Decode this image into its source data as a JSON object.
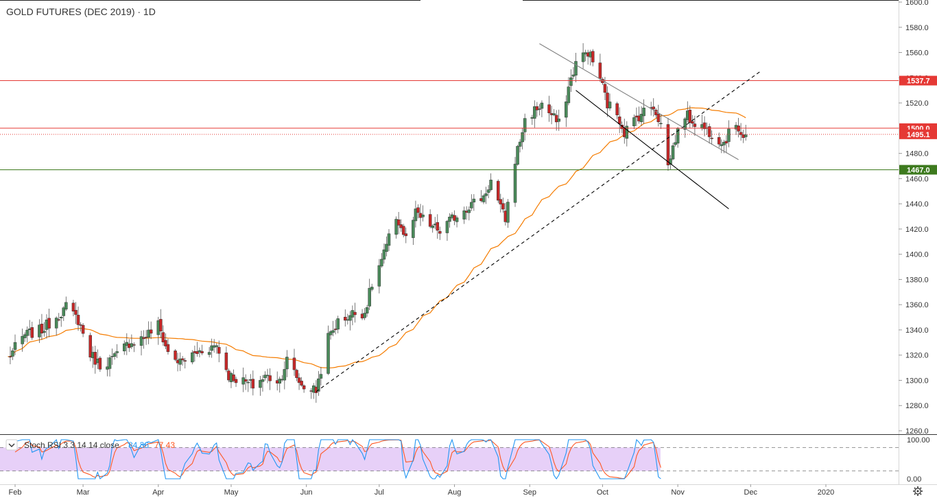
{
  "chart_data": {
    "type": "candlestick",
    "title": "GOLD FUTURES (DEC 2019) · 1D",
    "y_ticks": [
      "1600.0",
      "1580.0",
      "1560.0",
      "1540.0",
      "1520.0",
      "1500.0",
      "1480.0",
      "1460.0",
      "1440.0",
      "1420.0",
      "1400.0",
      "1380.0",
      "1360.0",
      "1340.0",
      "1320.0",
      "1300.0",
      "1280.0",
      "1260.0"
    ],
    "y_tick_values": [
      1600,
      1580,
      1560,
      1540,
      1520,
      1500,
      1480,
      1460,
      1440,
      1420,
      1400,
      1380,
      1360,
      1340,
      1320,
      1300,
      1280,
      1260
    ],
    "ylim": [
      1258,
      1602
    ],
    "x_labels": [
      "Feb",
      "Mar",
      "Apr",
      "May",
      "Jun",
      "Jul",
      "Aug",
      "Sep",
      "Oct",
      "Nov",
      "Dec",
      "2020"
    ],
    "price_markers": [
      {
        "label": "1537.7",
        "value": 1537.7,
        "color": "#e53935"
      },
      {
        "label": "1500.0",
        "value": 1500.0,
        "color": "#e53935"
      },
      {
        "label": "1495.1",
        "value": 1495.1,
        "color": "#e53935"
      },
      {
        "label": "1467.0",
        "value": 1467.0,
        "color": "#3d7a1e"
      }
    ],
    "anchors": [
      {
        "date": "2019-01-29",
        "close": 1318
      },
      {
        "date": "2019-02-05",
        "close": 1336
      },
      {
        "date": "2019-02-12",
        "close": 1340
      },
      {
        "date": "2019-02-20",
        "close": 1354
      },
      {
        "date": "2019-02-22",
        "close": 1358
      },
      {
        "date": "2019-02-27",
        "close": 1348
      },
      {
        "date": "2019-03-04",
        "close": 1321
      },
      {
        "date": "2019-03-08",
        "close": 1312
      },
      {
        "date": "2019-03-14",
        "close": 1318
      },
      {
        "date": "2019-03-20",
        "close": 1330
      },
      {
        "date": "2019-03-26",
        "close": 1334
      },
      {
        "date": "2019-04-01",
        "close": 1344
      },
      {
        "date": "2019-04-05",
        "close": 1322
      },
      {
        "date": "2019-04-10",
        "close": 1314
      },
      {
        "date": "2019-04-15",
        "close": 1320
      },
      {
        "date": "2019-04-19",
        "close": 1324
      },
      {
        "date": "2019-04-25",
        "close": 1328
      },
      {
        "date": "2019-04-30",
        "close": 1304
      },
      {
        "date": "2019-05-06",
        "close": 1299
      },
      {
        "date": "2019-05-10",
        "close": 1296
      },
      {
        "date": "2019-05-15",
        "close": 1303
      },
      {
        "date": "2019-05-21",
        "close": 1300
      },
      {
        "date": "2019-05-24",
        "close": 1316
      },
      {
        "date": "2019-05-30",
        "close": 1296
      },
      {
        "date": "2019-06-05",
        "close": 1292
      },
      {
        "date": "2019-06-10",
        "close": 1334
      },
      {
        "date": "2019-06-14",
        "close": 1346
      },
      {
        "date": "2019-06-20",
        "close": 1353
      },
      {
        "date": "2019-06-25",
        "close": 1354
      },
      {
        "date": "2019-06-28",
        "close": 1376
      },
      {
        "date": "2019-07-03",
        "close": 1400
      },
      {
        "date": "2019-07-08",
        "close": 1430
      },
      {
        "date": "2019-07-12",
        "close": 1412
      },
      {
        "date": "2019-07-16",
        "close": 1432
      },
      {
        "date": "2019-07-22",
        "close": 1423
      },
      {
        "date": "2019-07-26",
        "close": 1418
      },
      {
        "date": "2019-07-31",
        "close": 1428
      },
      {
        "date": "2019-08-05",
        "close": 1436
      },
      {
        "date": "2019-08-09",
        "close": 1441
      },
      {
        "date": "2019-08-13",
        "close": 1446
      },
      {
        "date": "2019-08-16",
        "close": 1458
      },
      {
        "date": "2019-08-20",
        "close": 1436
      },
      {
        "date": "2019-08-22",
        "close": 1428
      },
      {
        "date": "2019-08-26",
        "close": 1475
      },
      {
        "date": "2019-08-30",
        "close": 1506
      },
      {
        "date": "2019-09-03",
        "close": 1514
      },
      {
        "date": "2019-09-06",
        "close": 1519
      },
      {
        "date": "2019-09-10",
        "close": 1510
      },
      {
        "date": "2019-09-13",
        "close": 1503
      },
      {
        "date": "2019-09-17",
        "close": 1532
      },
      {
        "date": "2019-09-20",
        "close": 1552
      },
      {
        "date": "2019-09-25",
        "close": 1561
      },
      {
        "date": "2019-09-30",
        "close": 1540
      },
      {
        "date": "2019-10-03",
        "close": 1519
      },
      {
        "date": "2019-10-07",
        "close": 1512
      },
      {
        "date": "2019-10-10",
        "close": 1497
      },
      {
        "date": "2019-10-14",
        "close": 1506
      },
      {
        "date": "2019-10-17",
        "close": 1512
      },
      {
        "date": "2019-10-22",
        "close": 1518
      },
      {
        "date": "2019-10-25",
        "close": 1503
      },
      {
        "date": "2019-10-28",
        "close": 1470
      },
      {
        "date": "2019-10-31",
        "close": 1492
      },
      {
        "date": "2019-11-04",
        "close": 1511
      },
      {
        "date": "2019-11-07",
        "close": 1506
      },
      {
        "date": "2019-11-12",
        "close": 1500
      },
      {
        "date": "2019-11-15",
        "close": 1496
      },
      {
        "date": "2019-11-20",
        "close": 1489
      },
      {
        "date": "2019-11-25",
        "close": 1504
      },
      {
        "date": "2019-11-28",
        "close": 1494
      },
      {
        "date": "2019-11-29",
        "close": 1495
      }
    ],
    "moving_average_color": "#f57c00",
    "candle_up_color": "#4a8a5a",
    "candle_down_color": "#c62828",
    "trendlines": [
      {
        "style": "dashed",
        "from": {
          "date": "2019-06-05",
          "value": 1291
        },
        "to": {
          "date": "2019-12-05",
          "value": 1545
        },
        "color": "#000000"
      },
      {
        "style": "solid",
        "from": {
          "date": "2019-09-05",
          "value": 1567
        },
        "to": {
          "date": "2019-11-26",
          "value": 1475
        },
        "color": "#808080"
      },
      {
        "style": "solid",
        "from": {
          "date": "2019-09-20",
          "value": 1530
        },
        "to": {
          "date": "2019-11-22",
          "value": 1436
        },
        "color": "#000000"
      }
    ],
    "indicator": {
      "name": "Stoch RSI 3 3 14 14 close",
      "k_value": "84.36",
      "d_value": "77.43",
      "k_color": "#2196f3",
      "d_color": "#ff5722",
      "band_upper": 80,
      "band_lower": 20,
      "band_fill": "#e1c4f6",
      "y_ticks": [
        "100.00",
        "0.00"
      ]
    }
  },
  "toolbar": {
    "collapse_icon": "chevron-down-icon",
    "settings_icon": "gear-icon"
  }
}
